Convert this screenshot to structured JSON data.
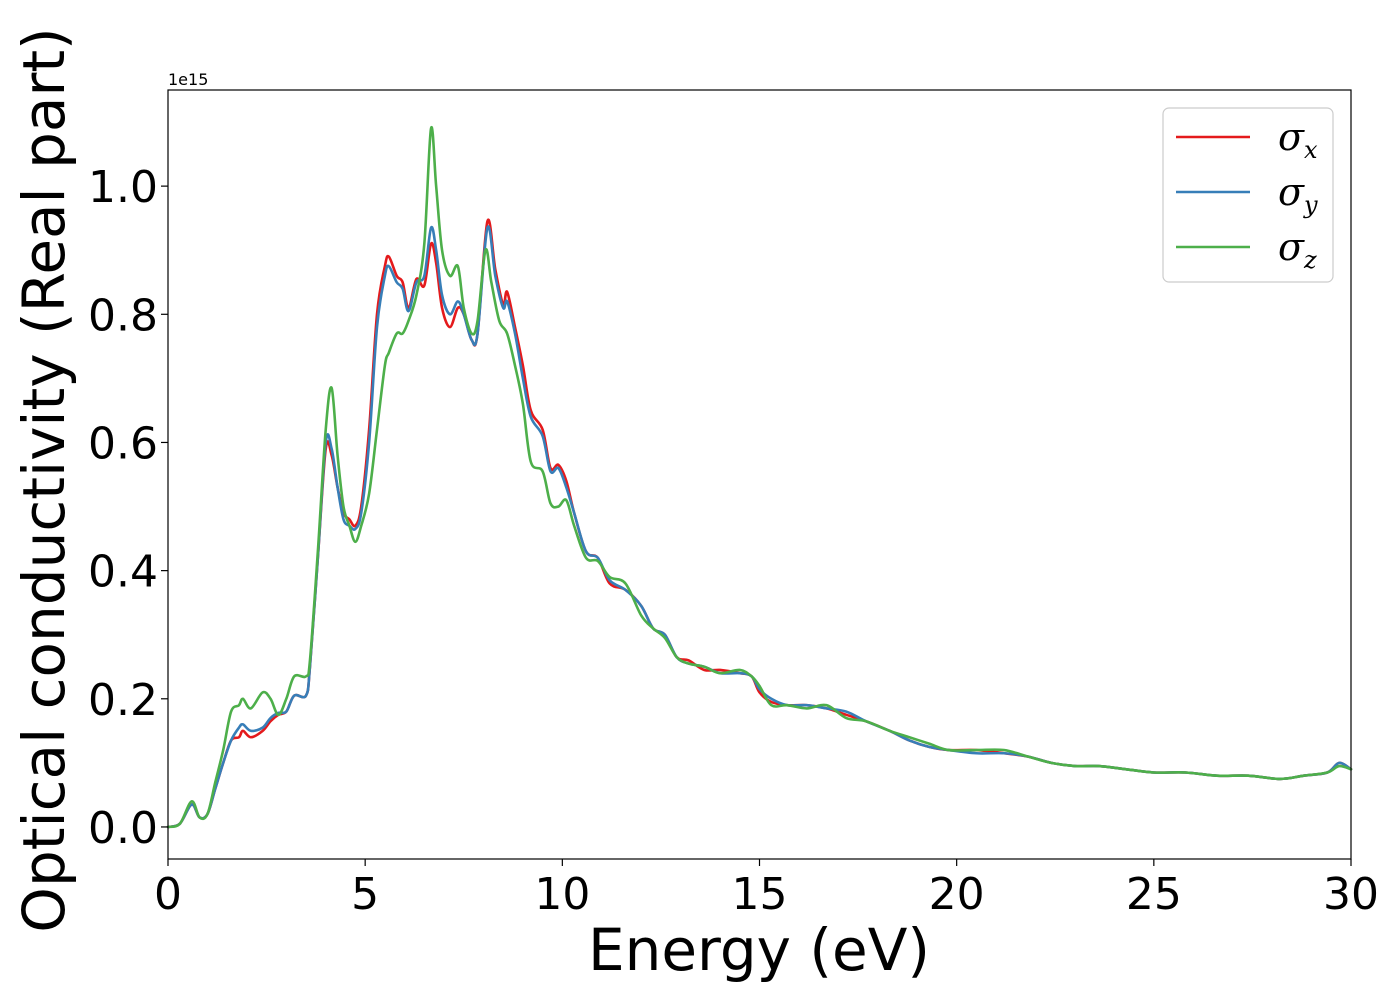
{
  "chart_data": {
    "type": "line",
    "title": "",
    "xlabel": "Energy (eV)",
    "ylabel": "Optical conductivity (Real part)",
    "y_offset_label": "1e15",
    "xlim": [
      0,
      30
    ],
    "ylim": [
      -0.05,
      1.15
    ],
    "x_ticks": [
      0,
      5,
      10,
      15,
      20,
      25,
      30
    ],
    "x_tick_labels": [
      "0",
      "5",
      "10",
      "15",
      "20",
      "25",
      "30"
    ],
    "y_ticks": [
      0.0,
      0.2,
      0.4,
      0.6,
      0.8,
      1.0
    ],
    "y_tick_labels": [
      "0.0",
      "0.2",
      "0.4",
      "0.6",
      "0.8",
      "1.0"
    ],
    "grid": false,
    "legend_position": "top-right",
    "series": [
      {
        "name": "σx",
        "symbol": "σ",
        "subscript": "x",
        "color": "#e41a1c",
        "points": [
          [
            0,
            0
          ],
          [
            0.3,
            0.005
          ],
          [
            0.6,
            0.035
          ],
          [
            0.8,
            0.015
          ],
          [
            1.0,
            0.02
          ],
          [
            1.2,
            0.06
          ],
          [
            1.4,
            0.1
          ],
          [
            1.6,
            0.135
          ],
          [
            1.8,
            0.14
          ],
          [
            1.9,
            0.15
          ],
          [
            2.1,
            0.14
          ],
          [
            2.4,
            0.15
          ],
          [
            2.6,
            0.165
          ],
          [
            2.8,
            0.175
          ],
          [
            3.0,
            0.18
          ],
          [
            3.2,
            0.205
          ],
          [
            3.5,
            0.205
          ],
          [
            3.6,
            0.25
          ],
          [
            3.8,
            0.42
          ],
          [
            4.0,
            0.59
          ],
          [
            4.15,
            0.58
          ],
          [
            4.3,
            0.53
          ],
          [
            4.45,
            0.49
          ],
          [
            4.6,
            0.48
          ],
          [
            4.75,
            0.47
          ],
          [
            4.9,
            0.5
          ],
          [
            5.1,
            0.62
          ],
          [
            5.3,
            0.8
          ],
          [
            5.5,
            0.875
          ],
          [
            5.6,
            0.89
          ],
          [
            5.8,
            0.86
          ],
          [
            5.95,
            0.85
          ],
          [
            6.1,
            0.81
          ],
          [
            6.3,
            0.855
          ],
          [
            6.5,
            0.845
          ],
          [
            6.67,
            0.91
          ],
          [
            6.8,
            0.88
          ],
          [
            6.95,
            0.81
          ],
          [
            7.15,
            0.78
          ],
          [
            7.35,
            0.81
          ],
          [
            7.5,
            0.8
          ],
          [
            7.7,
            0.76
          ],
          [
            7.85,
            0.77
          ],
          [
            8.1,
            0.945
          ],
          [
            8.3,
            0.87
          ],
          [
            8.5,
            0.815
          ],
          [
            8.6,
            0.835
          ],
          [
            8.8,
            0.78
          ],
          [
            9.0,
            0.72
          ],
          [
            9.2,
            0.65
          ],
          [
            9.5,
            0.62
          ],
          [
            9.7,
            0.56
          ],
          [
            9.9,
            0.565
          ],
          [
            10.1,
            0.54
          ],
          [
            10.3,
            0.49
          ],
          [
            10.6,
            0.43
          ],
          [
            10.9,
            0.42
          ],
          [
            11.2,
            0.38
          ],
          [
            11.6,
            0.37
          ],
          [
            12.0,
            0.345
          ],
          [
            12.3,
            0.31
          ],
          [
            12.6,
            0.3
          ],
          [
            12.9,
            0.265
          ],
          [
            13.2,
            0.26
          ],
          [
            13.6,
            0.245
          ],
          [
            14.0,
            0.245
          ],
          [
            14.5,
            0.24
          ],
          [
            14.8,
            0.235
          ],
          [
            15.0,
            0.21
          ],
          [
            15.3,
            0.195
          ],
          [
            15.7,
            0.19
          ],
          [
            16.2,
            0.19
          ],
          [
            16.7,
            0.185
          ],
          [
            17.2,
            0.175
          ],
          [
            17.7,
            0.165
          ],
          [
            18.3,
            0.15
          ],
          [
            18.8,
            0.135
          ],
          [
            19.3,
            0.125
          ],
          [
            19.8,
            0.12
          ],
          [
            20.5,
            0.12
          ],
          [
            21.2,
            0.115
          ],
          [
            21.8,
            0.11
          ],
          [
            22.4,
            0.1
          ],
          [
            23.0,
            0.095
          ],
          [
            23.6,
            0.095
          ],
          [
            24.3,
            0.09
          ],
          [
            25.0,
            0.085
          ],
          [
            25.8,
            0.085
          ],
          [
            26.6,
            0.08
          ],
          [
            27.4,
            0.08
          ],
          [
            28.2,
            0.075
          ],
          [
            28.8,
            0.08
          ],
          [
            29.4,
            0.085
          ],
          [
            29.7,
            0.1
          ],
          [
            30.0,
            0.09
          ]
        ]
      },
      {
        "name": "σy",
        "symbol": "σ",
        "subscript": "y",
        "color": "#377eb8",
        "points": [
          [
            0,
            0
          ],
          [
            0.3,
            0.005
          ],
          [
            0.6,
            0.035
          ],
          [
            0.8,
            0.015
          ],
          [
            1.0,
            0.02
          ],
          [
            1.2,
            0.06
          ],
          [
            1.4,
            0.1
          ],
          [
            1.6,
            0.135
          ],
          [
            1.8,
            0.155
          ],
          [
            1.9,
            0.16
          ],
          [
            2.1,
            0.15
          ],
          [
            2.4,
            0.155
          ],
          [
            2.6,
            0.17
          ],
          [
            2.8,
            0.178
          ],
          [
            3.0,
            0.18
          ],
          [
            3.2,
            0.205
          ],
          [
            3.5,
            0.205
          ],
          [
            3.6,
            0.25
          ],
          [
            3.8,
            0.42
          ],
          [
            4.0,
            0.6
          ],
          [
            4.15,
            0.59
          ],
          [
            4.3,
            0.53
          ],
          [
            4.45,
            0.48
          ],
          [
            4.6,
            0.47
          ],
          [
            4.75,
            0.465
          ],
          [
            4.9,
            0.49
          ],
          [
            5.1,
            0.6
          ],
          [
            5.3,
            0.78
          ],
          [
            5.5,
            0.86
          ],
          [
            5.6,
            0.875
          ],
          [
            5.8,
            0.85
          ],
          [
            5.95,
            0.84
          ],
          [
            6.1,
            0.805
          ],
          [
            6.3,
            0.85
          ],
          [
            6.5,
            0.86
          ],
          [
            6.67,
            0.935
          ],
          [
            6.8,
            0.9
          ],
          [
            6.95,
            0.83
          ],
          [
            7.15,
            0.8
          ],
          [
            7.35,
            0.82
          ],
          [
            7.5,
            0.8
          ],
          [
            7.7,
            0.76
          ],
          [
            7.85,
            0.77
          ],
          [
            8.1,
            0.935
          ],
          [
            8.3,
            0.86
          ],
          [
            8.5,
            0.81
          ],
          [
            8.6,
            0.82
          ],
          [
            8.8,
            0.77
          ],
          [
            9.0,
            0.7
          ],
          [
            9.2,
            0.64
          ],
          [
            9.5,
            0.61
          ],
          [
            9.7,
            0.555
          ],
          [
            9.9,
            0.56
          ],
          [
            10.1,
            0.53
          ],
          [
            10.3,
            0.49
          ],
          [
            10.6,
            0.43
          ],
          [
            10.9,
            0.42
          ],
          [
            11.2,
            0.385
          ],
          [
            11.6,
            0.37
          ],
          [
            12.0,
            0.345
          ],
          [
            12.3,
            0.31
          ],
          [
            12.6,
            0.3
          ],
          [
            12.9,
            0.265
          ],
          [
            13.2,
            0.255
          ],
          [
            13.6,
            0.25
          ],
          [
            14.0,
            0.24
          ],
          [
            14.5,
            0.24
          ],
          [
            14.8,
            0.235
          ],
          [
            15.0,
            0.215
          ],
          [
            15.3,
            0.2
          ],
          [
            15.7,
            0.19
          ],
          [
            16.2,
            0.19
          ],
          [
            16.7,
            0.185
          ],
          [
            17.2,
            0.18
          ],
          [
            17.7,
            0.165
          ],
          [
            18.3,
            0.15
          ],
          [
            18.8,
            0.135
          ],
          [
            19.3,
            0.125
          ],
          [
            19.8,
            0.12
          ],
          [
            20.5,
            0.115
          ],
          [
            21.2,
            0.115
          ],
          [
            21.8,
            0.11
          ],
          [
            22.4,
            0.1
          ],
          [
            23.0,
            0.095
          ],
          [
            23.6,
            0.095
          ],
          [
            24.3,
            0.09
          ],
          [
            25.0,
            0.085
          ],
          [
            25.8,
            0.085
          ],
          [
            26.6,
            0.08
          ],
          [
            27.4,
            0.08
          ],
          [
            28.2,
            0.075
          ],
          [
            28.8,
            0.08
          ],
          [
            29.4,
            0.085
          ],
          [
            29.7,
            0.1
          ],
          [
            30.0,
            0.09
          ]
        ]
      },
      {
        "name": "σz",
        "symbol": "σ",
        "subscript": "z",
        "color": "#4daf4a",
        "points": [
          [
            0,
            0
          ],
          [
            0.3,
            0.005
          ],
          [
            0.6,
            0.04
          ],
          [
            0.8,
            0.015
          ],
          [
            1.0,
            0.02
          ],
          [
            1.2,
            0.07
          ],
          [
            1.4,
            0.12
          ],
          [
            1.6,
            0.18
          ],
          [
            1.8,
            0.19
          ],
          [
            1.9,
            0.2
          ],
          [
            2.1,
            0.185
          ],
          [
            2.4,
            0.21
          ],
          [
            2.6,
            0.2
          ],
          [
            2.8,
            0.175
          ],
          [
            3.0,
            0.2
          ],
          [
            3.2,
            0.235
          ],
          [
            3.5,
            0.235
          ],
          [
            3.6,
            0.26
          ],
          [
            3.8,
            0.43
          ],
          [
            4.0,
            0.62
          ],
          [
            4.15,
            0.685
          ],
          [
            4.3,
            0.58
          ],
          [
            4.45,
            0.5
          ],
          [
            4.6,
            0.47
          ],
          [
            4.75,
            0.445
          ],
          [
            4.9,
            0.47
          ],
          [
            5.1,
            0.52
          ],
          [
            5.3,
            0.62
          ],
          [
            5.5,
            0.72
          ],
          [
            5.6,
            0.74
          ],
          [
            5.8,
            0.77
          ],
          [
            5.95,
            0.77
          ],
          [
            6.1,
            0.79
          ],
          [
            6.3,
            0.83
          ],
          [
            6.5,
            0.91
          ],
          [
            6.67,
            1.09
          ],
          [
            6.8,
            1.0
          ],
          [
            6.95,
            0.9
          ],
          [
            7.15,
            0.86
          ],
          [
            7.35,
            0.875
          ],
          [
            7.5,
            0.81
          ],
          [
            7.7,
            0.77
          ],
          [
            7.85,
            0.79
          ],
          [
            8.05,
            0.9
          ],
          [
            8.2,
            0.85
          ],
          [
            8.4,
            0.79
          ],
          [
            8.6,
            0.77
          ],
          [
            8.8,
            0.72
          ],
          [
            9.0,
            0.66
          ],
          [
            9.2,
            0.57
          ],
          [
            9.5,
            0.555
          ],
          [
            9.7,
            0.505
          ],
          [
            9.9,
            0.5
          ],
          [
            10.1,
            0.51
          ],
          [
            10.3,
            0.47
          ],
          [
            10.6,
            0.42
          ],
          [
            10.9,
            0.415
          ],
          [
            11.2,
            0.39
          ],
          [
            11.6,
            0.38
          ],
          [
            12.0,
            0.33
          ],
          [
            12.3,
            0.31
          ],
          [
            12.6,
            0.295
          ],
          [
            12.9,
            0.265
          ],
          [
            13.2,
            0.255
          ],
          [
            13.6,
            0.25
          ],
          [
            14.0,
            0.24
          ],
          [
            14.5,
            0.245
          ],
          [
            14.8,
            0.235
          ],
          [
            15.0,
            0.22
          ],
          [
            15.3,
            0.19
          ],
          [
            15.7,
            0.19
          ],
          [
            16.2,
            0.185
          ],
          [
            16.7,
            0.19
          ],
          [
            17.2,
            0.17
          ],
          [
            17.7,
            0.165
          ],
          [
            18.3,
            0.15
          ],
          [
            18.8,
            0.14
          ],
          [
            19.3,
            0.13
          ],
          [
            19.8,
            0.12
          ],
          [
            20.5,
            0.12
          ],
          [
            21.2,
            0.12
          ],
          [
            21.8,
            0.11
          ],
          [
            22.4,
            0.1
          ],
          [
            23.0,
            0.095
          ],
          [
            23.6,
            0.095
          ],
          [
            24.3,
            0.09
          ],
          [
            25.0,
            0.085
          ],
          [
            25.8,
            0.085
          ],
          [
            26.6,
            0.08
          ],
          [
            27.4,
            0.08
          ],
          [
            28.2,
            0.075
          ],
          [
            28.8,
            0.08
          ],
          [
            29.4,
            0.085
          ],
          [
            29.7,
            0.095
          ],
          [
            30.0,
            0.09
          ]
        ]
      }
    ]
  }
}
